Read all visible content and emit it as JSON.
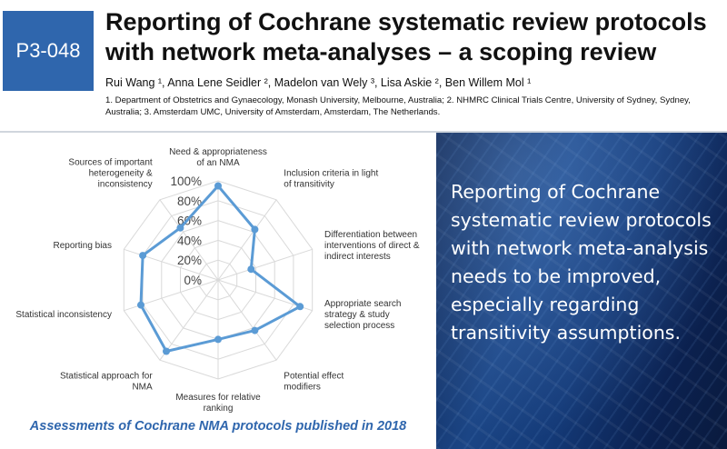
{
  "header": {
    "poster_id": "P3-048",
    "title_lines": [
      "Reporting of Cochrane systematic review protocols",
      "with network meta-analyses – a scoping review"
    ],
    "authors": "Rui Wang ¹, Anna Lene Seidler ², Madelon van Wely ³, Lisa Askie ², Ben Willem Mol ¹",
    "affiliations": "1. Department of Obstetrics and Gynaecology, Monash University, Melbourne, Australia; 2. NHMRC Clinical Trials Centre, University of Sydney, Sydney, Australia; 3. Amsterdam UMC, University of Amsterdam, Amsterdam, The Netherlands."
  },
  "chart_data": {
    "type": "radar",
    "categories": [
      [
        "Need & appropriateness",
        "of an NMA"
      ],
      [
        "Inclusion criteria in light",
        "of transitivity"
      ],
      [
        "Differentiation between",
        "interventions of direct &",
        "indirect interests"
      ],
      [
        "Appropriate search",
        "strategy & study",
        "selection process"
      ],
      [
        "Potential effect",
        "modifiers"
      ],
      [
        "Measures for relative",
        "ranking"
      ],
      [
        "Statistical approach for",
        "NMA"
      ],
      [
        "Statistical inconsistency"
      ],
      [
        "Reporting bias"
      ],
      [
        "Sources of important",
        "heterogeneity &",
        "inconsistency"
      ]
    ],
    "values": [
      95,
      63,
      35,
      87,
      63,
      60,
      89,
      82,
      80,
      65
    ],
    "range": [
      0,
      100
    ],
    "ticks": [
      "0%",
      "20%",
      "40%",
      "60%",
      "80%",
      "100%"
    ],
    "series_color": "#5b9bd5",
    "grid": true,
    "caption": "Assessments of Cochrane NMA protocols published in 2018"
  },
  "message": "Reporting of Cochrane systematic review protocols with network meta-analysis needs to be improved, especially regarding transitivity assumptions.",
  "colors": {
    "accent_blue": "#2f66ad",
    "panel_dark": "#12326b"
  }
}
